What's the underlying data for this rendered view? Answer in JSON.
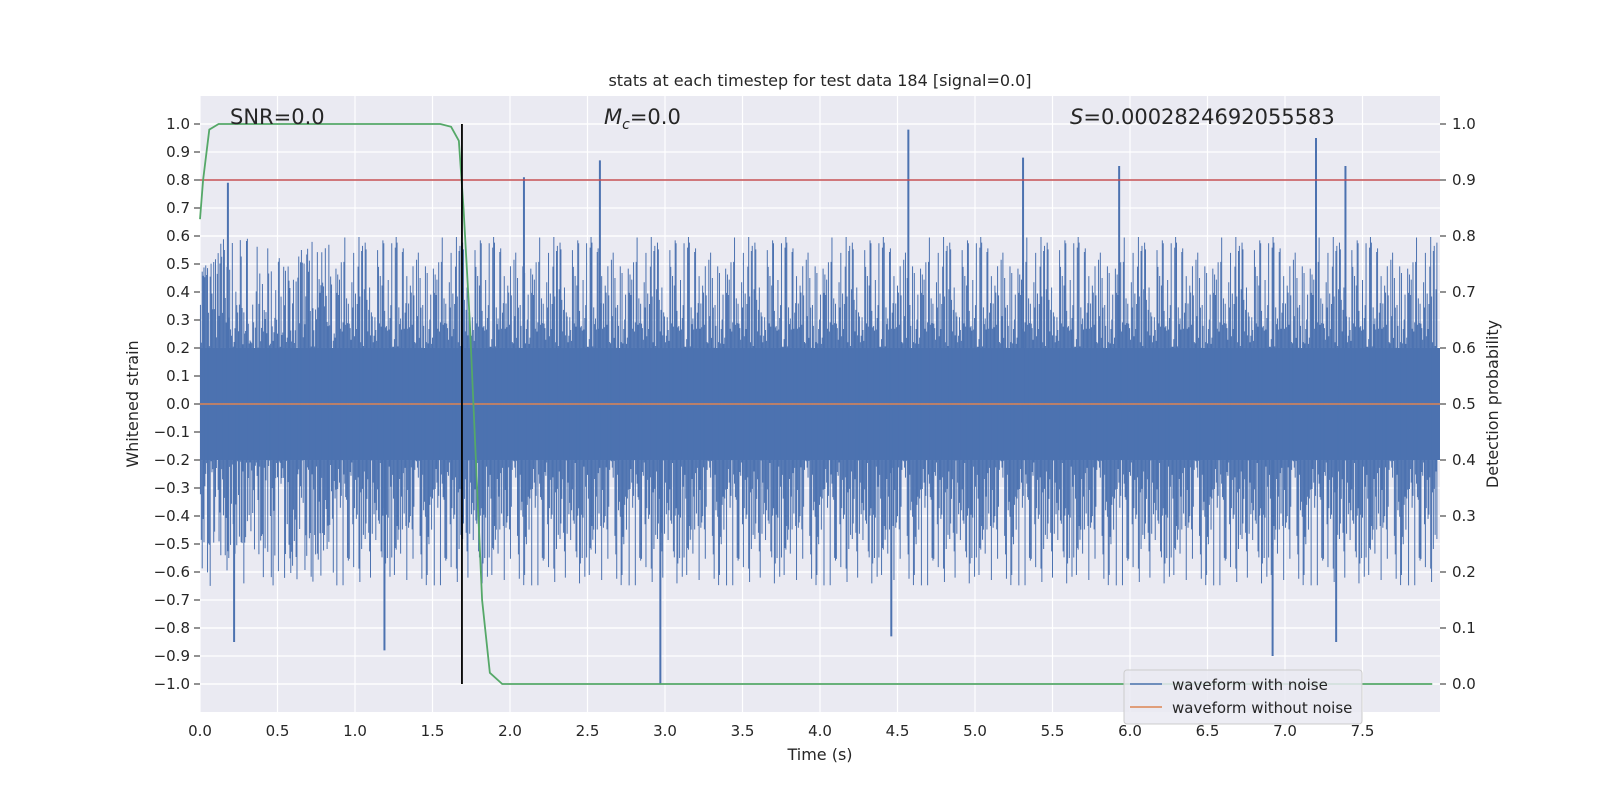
{
  "chart_data": {
    "type": "line",
    "title": "stats at each timestep for test data 184 [signal=0.0]",
    "xlabel": "Time (s)",
    "ylabel": "Whitened strain",
    "y2label": "Detection probability",
    "xlim": [
      0.0,
      8.0
    ],
    "ylim": [
      -1.1,
      1.1
    ],
    "y2lim": [
      -0.05,
      1.05
    ],
    "xticks": [
      "0.0",
      "0.5",
      "1.0",
      "1.5",
      "2.0",
      "2.5",
      "3.0",
      "3.5",
      "4.0",
      "4.5",
      "5.0",
      "5.5",
      "6.0",
      "6.5",
      "7.0",
      "7.5"
    ],
    "yticks": [
      "1.0",
      "0.9",
      "0.8",
      "0.7",
      "0.6",
      "0.5",
      "0.4",
      "0.3",
      "0.2",
      "0.1",
      "0.0",
      "−0.1",
      "−0.2",
      "−0.3",
      "−0.4",
      "−0.5",
      "−0.6",
      "−0.7",
      "−0.8",
      "−0.9",
      "−1.0"
    ],
    "y2ticks": [
      "1.0",
      "0.9",
      "0.8",
      "0.7",
      "0.6",
      "0.5",
      "0.4",
      "0.3",
      "0.2",
      "0.1",
      "0.0"
    ],
    "grid": true,
    "annotations": {
      "snr": "SNR=0.0",
      "mc_symbol": "M",
      "mc_sub": "c",
      "mc_value": "=0.0",
      "s_symbol": "S",
      "s_value": "=0.0002824692055583"
    },
    "threshold": {
      "value": 0.9,
      "axis": "right",
      "color": "#c44e52"
    },
    "marker_time": 1.69,
    "noise_envelope": {
      "name": "waveform with noise",
      "color": "#4c72b0",
      "dense_band": [
        -0.2,
        0.2
      ],
      "typical_max": 0.55,
      "typical_min": -0.6,
      "peaks": [
        {
          "t": 0.18,
          "v": 0.79
        },
        {
          "t": 2.09,
          "v": 0.81
        },
        {
          "t": 2.58,
          "v": 0.87
        },
        {
          "t": 4.57,
          "v": 0.98
        },
        {
          "t": 5.31,
          "v": 0.88
        },
        {
          "t": 5.93,
          "v": 0.85
        },
        {
          "t": 7.2,
          "v": 0.95
        },
        {
          "t": 7.39,
          "v": 0.85
        }
      ],
      "troughs": [
        {
          "t": 0.22,
          "v": -0.85
        },
        {
          "t": 1.19,
          "v": -0.88
        },
        {
          "t": 2.97,
          "v": -1.0
        },
        {
          "t": 4.46,
          "v": -0.83
        },
        {
          "t": 6.92,
          "v": -0.9
        },
        {
          "t": 7.33,
          "v": -0.85
        }
      ]
    },
    "series": [
      {
        "name": "waveform without noise",
        "color": "#dd8452",
        "x": [
          0.0,
          8.0
        ],
        "y": [
          0.0,
          0.0
        ]
      },
      {
        "name": "detection probability",
        "axis": "right",
        "color": "#55a868",
        "x": [
          0.0,
          0.02,
          0.06,
          0.12,
          0.2,
          0.5,
          1.0,
          1.4,
          1.55,
          1.62,
          1.67,
          1.7,
          1.74,
          1.78,
          1.82,
          1.87,
          1.95,
          2.0,
          2.5,
          4.0,
          6.0,
          7.95
        ],
        "y": [
          0.83,
          0.9,
          0.99,
          1.0,
          1.0,
          1.0,
          1.0,
          1.0,
          1.0,
          0.995,
          0.97,
          0.85,
          0.65,
          0.4,
          0.15,
          0.02,
          0.0,
          0.0,
          0.0,
          0.0,
          0.0,
          0.0
        ]
      }
    ],
    "legend": {
      "location": "lower-right",
      "entries": [
        {
          "label": "waveform with noise",
          "color": "#4c72b0"
        },
        {
          "label": "waveform without noise",
          "color": "#dd8452"
        }
      ]
    }
  }
}
